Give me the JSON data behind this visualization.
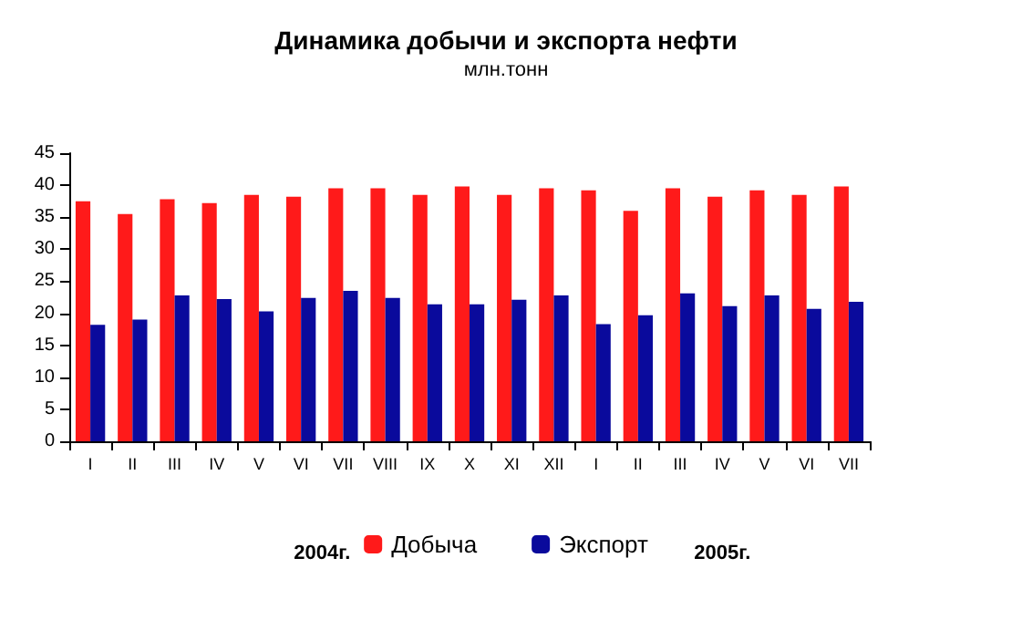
{
  "chart_data": {
    "type": "bar",
    "title": "Динамика добычи и экспорта нефти",
    "subtitle": "млн.тонн",
    "categories": [
      "I",
      "II",
      "III",
      "IV",
      "V",
      "VI",
      "VII",
      "VIII",
      "IX",
      "X",
      "XI",
      "XII",
      "I",
      "II",
      "III",
      "IV",
      "V",
      "VI",
      "VII"
    ],
    "series": [
      {
        "name": "Добыча",
        "color": "#ff1a1a",
        "values": [
          37.5,
          35.5,
          37.8,
          37.2,
          38.5,
          38.2,
          39.5,
          39.5,
          38.5,
          39.8,
          38.5,
          39.5,
          39.2,
          36,
          39.5,
          38.2,
          39.2,
          38.5,
          39.8
        ]
      },
      {
        "name": "Экспорт",
        "color": "#0a0a9c",
        "values": [
          18.2,
          19,
          22.8,
          22.2,
          20.3,
          22.4,
          23.5,
          22.4,
          21.4,
          21.4,
          22.1,
          22.8,
          18.3,
          19.7,
          23.1,
          21.1,
          22.8,
          20.7,
          21.8
        ]
      }
    ],
    "ylim": [
      0,
      45
    ],
    "yticks": [
      0,
      5,
      10,
      15,
      20,
      25,
      30,
      35,
      40,
      45
    ],
    "grid": false,
    "legend": "bottom",
    "annotations": [
      "2004г.",
      "2005г."
    ]
  }
}
